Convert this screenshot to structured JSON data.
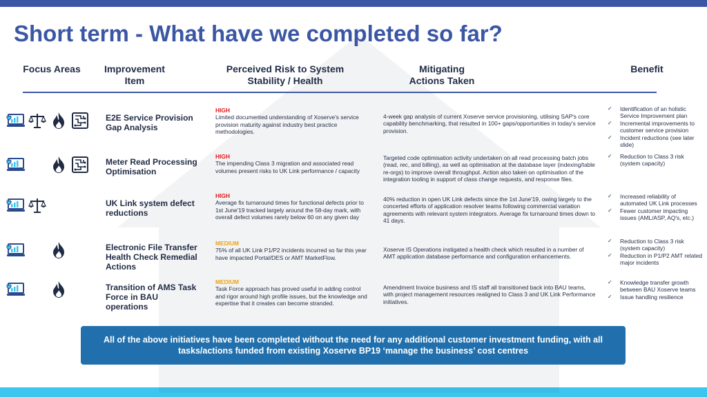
{
  "title": "Short term - What have we completed so far?",
  "headers": {
    "focus": "Focus Areas",
    "item_l1": "Improvement",
    "item_l2": "Item",
    "risk_l1": "Perceived Risk to System",
    "risk_l2": "Stability / Health",
    "actions_l1": "Mitigating",
    "actions_l2": "Actions Taken",
    "benefit": "Benefit"
  },
  "rows": [
    {
      "icons": [
        "laptop-chart-icon",
        "scales-icon",
        "fire-icon",
        "circuit-icon"
      ],
      "item": "E2E Service Provision Gap Analysis",
      "risk_level": "HIGH",
      "risk_text": "Limited documented understanding of Xoserve's service provision maturity against industry best practice methodologies.",
      "action": "4-week gap analysis of current Xoserve service provisioning, utilising SAP's core capability benchmarking, that resulted in 100+ gaps/opportunities in today's service provision.",
      "benefits": [
        "Identification of an holistic Service Improvement plan",
        "Incremental improvements to customer service provision",
        "Incident reductions (see later slide)"
      ]
    },
    {
      "icons": [
        "laptop-chart-icon",
        "",
        "fire-icon",
        "circuit-icon"
      ],
      "item": "Meter Read Processing Optimisation",
      "risk_level": "HIGH",
      "risk_text": "The impending Class 3 migration and associated read volumes present risks to UK Link performance / capacity",
      "action": "Targeted code optimisation activity undertaken on all read processing batch jobs (read, rec, and billing), as well as optimisation at the database layer (indexing/table re-orgs) to improve overall throughput. Action also taken on optimisation of the integration tooling in support of class change requests, and response files.",
      "benefits": [
        "Reduction to Class 3 risk (system capacity)"
      ]
    },
    {
      "icons": [
        "laptop-chart-icon",
        "scales-icon",
        "",
        ""
      ],
      "item": "UK Link system defect reductions",
      "risk_level": "HIGH",
      "risk_text": "Average fix turnaround times for functional defects prior to 1st June'19 tracked largely around the 58-day mark, with overall defect volumes rarely below 60 on any given day",
      "action": "40% reduction in open UK Link defects since the 1st June'19, owing largely to the concerted efforts of application resolver teams following commercial variation agreements with relevant system integrators. Average fix turnaround times down to 41 days.",
      "benefits": [
        "Increased reliability of automated UK Link processes",
        "Fewer customer impacting issues (AML/ASP, AQ's, etc.)"
      ]
    },
    {
      "icons": [
        "laptop-chart-icon",
        "",
        "fire-icon",
        ""
      ],
      "item": "Electronic File Transfer Health Check Remedial Actions",
      "risk_level": "MEDIUM",
      "risk_text": "75% of all UK Link P1/P2 incidents incurred so far this year have impacted Portal/DES or AMT MarketFlow.",
      "action": "Xoserve IS Operations instigated a health check which resulted in a number of AMT application database performance and configuration enhancements.",
      "benefits": [
        "Reduction to Class 3 risk (system capacity)",
        "Reduction in P1/P2 AMT related major incidents"
      ]
    },
    {
      "icons": [
        "laptop-chart-icon",
        "",
        "fire-icon",
        ""
      ],
      "item": "Transition of AMS Task Force in BAU operations",
      "risk_level": "MEDIUM",
      "risk_text": "Task Force approach has proved useful in adding control and rigor around high profile issues, but the knowledge and expertise that it creates can become stranded.",
      "action": "Amendment Invoice business and IS staff all transitioned back into BAU teams, with project management resources realigned to Class 3 and UK Link Performance initiatives.",
      "benefits": [
        "Knowledge transfer growth between BAU Xoserve teams",
        "Issue handling resilience"
      ]
    }
  ],
  "check_glyph": "✓",
  "banner": "All of the above initiatives have been completed without the need for any additional customer investment funding, with all tasks/actions funded from existing Xoserve BP19 ‘manage the business’ cost centres",
  "colors": {
    "title": "#3b56a4",
    "high": "#e0161b",
    "medium": "#f0a30a",
    "banner": "#2170ad",
    "top_band": "#3b56a4",
    "bottom_band": "#3cc6ef"
  }
}
